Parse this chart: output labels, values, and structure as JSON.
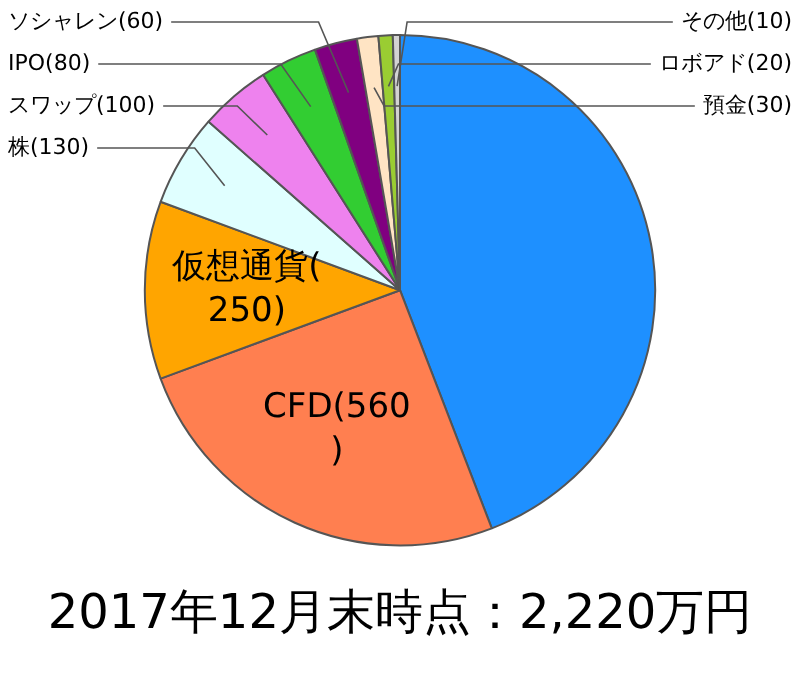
{
  "chart_data": {
    "type": "pie",
    "title": "2017年12月末時点：2,220万円",
    "categories": [
      null,
      "CFD(560)",
      "仮想通貨(250)",
      "株(130)",
      "スワップ(100)",
      "IPO(80)",
      "ソシャレン(60)",
      "預金(30)",
      "ロボアド(20)",
      "その他(10)"
    ],
    "values": [
      980,
      560,
      250,
      130,
      100,
      80,
      60,
      30,
      20,
      10
    ],
    "colors": [
      "#1e90ff",
      "#ff7f50",
      "#ffa500",
      "#e0ffff",
      "#ee82ee",
      "#32cd32",
      "#800080",
      "#ffe4c4",
      "#9acd32",
      "#d3d3d3"
    ],
    "legend": false
  }
}
